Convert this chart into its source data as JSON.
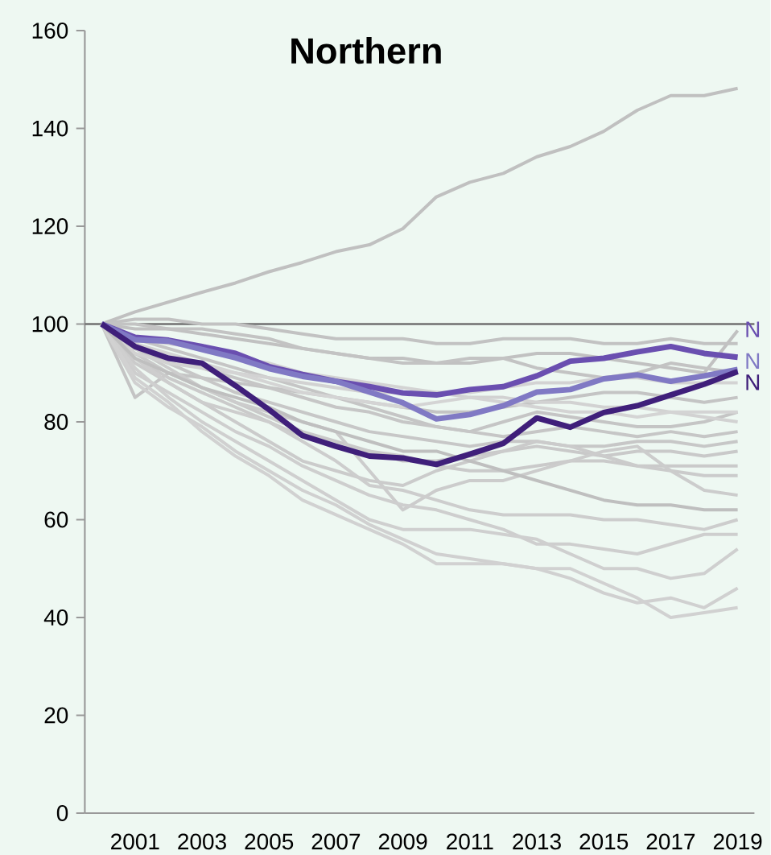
{
  "chart_data": {
    "type": "line",
    "title": "Northern",
    "categories": [
      null,
      "2001",
      null,
      "2003",
      null,
      "2005",
      null,
      "2007",
      null,
      "2009",
      null,
      "2011",
      null,
      "2013",
      null,
      "2015",
      null,
      "2017",
      null,
      "2019"
    ],
    "ylim": [
      0,
      160
    ],
    "yticks": [
      0,
      20,
      40,
      60,
      80,
      100,
      120,
      140,
      160
    ],
    "marker": "none",
    "line_style": "solid",
    "ref_lines": [
      {
        "axis": "y",
        "value": 100,
        "color": "#707070"
      }
    ],
    "series": [
      {
        "color": "#c0c0c0",
        "values": [
          100,
          102.5,
          104.5,
          106.5,
          108.4,
          110.7,
          112.6,
          114.8,
          116.2,
          119.5,
          126,
          129,
          130.8,
          134.2,
          136.3,
          139.4,
          143.7,
          146.7,
          146.7,
          148.2
        ]
      },
      {
        "color": "#c1c1c1",
        "values": [
          100,
          99,
          99,
          98,
          97,
          96,
          95,
          94,
          93,
          93,
          92,
          92,
          93,
          94,
          94,
          93,
          92,
          91,
          90,
          98.7
        ]
      },
      {
        "color": "#c2c2c2",
        "values": [
          100,
          101,
          101,
          100,
          100,
          99,
          98,
          97,
          97,
          97,
          96,
          96,
          97,
          97,
          97,
          96,
          96,
          97,
          96,
          96
        ]
      },
      {
        "color": "#c3c3c3",
        "values": [
          100,
          100,
          99,
          99,
          98,
          97,
          95,
          94,
          93,
          92,
          92,
          93,
          93,
          91,
          90,
          89,
          90,
          92,
          91,
          90
        ]
      },
      {
        "color": "#c4c4c4",
        "values": [
          100,
          85,
          90,
          89,
          88,
          87,
          86,
          85,
          84,
          83,
          82,
          82,
          83,
          84,
          85,
          86,
          86,
          85,
          84,
          85
        ]
      },
      {
        "color": "#c5c5c5",
        "values": [
          100,
          97,
          95,
          93,
          91,
          89,
          87,
          85,
          83,
          81,
          79,
          78,
          80,
          82,
          81,
          80,
          79,
          79,
          80,
          82
        ]
      },
      {
        "color": "#c6c6c6",
        "values": [
          100,
          96,
          93,
          91,
          89,
          87,
          85,
          83,
          82,
          80,
          79,
          78,
          77,
          78,
          79,
          78,
          77,
          78,
          77,
          78
        ]
      },
      {
        "color": "#c7c7c7",
        "values": [
          100,
          95,
          92,
          89,
          86,
          84,
          82,
          80,
          78,
          77,
          76,
          75,
          76,
          76,
          75,
          75,
          76,
          76,
          75,
          76
        ]
      },
      {
        "color": "#c9c9c9",
        "values": [
          100,
          94,
          90,
          87,
          84,
          81,
          78,
          76,
          74,
          72,
          72,
          73,
          74,
          75,
          74,
          73,
          74,
          74,
          73,
          74
        ]
      },
      {
        "color": "#cacaca",
        "values": [
          100,
          93,
          89,
          86,
          83,
          80,
          77,
          75,
          74,
          73,
          71,
          70,
          70,
          71,
          72,
          72,
          71,
          71,
          71,
          71
        ]
      },
      {
        "color": "#cbcbcb",
        "values": [
          100,
          92,
          88,
          84,
          80,
          76,
          72,
          70,
          68,
          67,
          70,
          72,
          74,
          76,
          75,
          73,
          71,
          70,
          69,
          69
        ]
      },
      {
        "color": "#cccccc",
        "values": [
          100,
          95,
          91,
          87,
          84,
          82,
          80,
          78,
          70,
          62,
          66,
          68,
          68,
          70,
          72,
          74,
          75,
          70,
          66,
          65
        ]
      },
      {
        "color": "#cdcdcd",
        "values": [
          100,
          93,
          88,
          84,
          82,
          80,
          76,
          72,
          67,
          66,
          64,
          62,
          61,
          61,
          61,
          60,
          60,
          59,
          58,
          60
        ]
      },
      {
        "color": "#cecece",
        "values": [
          100,
          90,
          86,
          82,
          78,
          75,
          71,
          68,
          65,
          63,
          62,
          60,
          58,
          55,
          55,
          54,
          53,
          55,
          57,
          57
        ]
      },
      {
        "color": "#cfcfcf",
        "values": [
          100,
          91,
          85,
          80,
          76,
          72,
          68,
          64,
          60,
          58,
          58,
          58,
          57,
          56,
          53,
          50,
          50,
          48,
          49,
          54
        ]
      },
      {
        "color": "#d0d0d0",
        "values": [
          100,
          88,
          83,
          79,
          74,
          70,
          66,
          63,
          59,
          56,
          53,
          52,
          51,
          50,
          48,
          45,
          43,
          44,
          42,
          46
        ]
      },
      {
        "color": "#d1d1d1",
        "values": [
          100,
          89,
          84,
          78,
          73,
          69,
          64,
          61,
          58,
          55,
          51,
          51,
          51,
          50,
          50,
          47,
          44,
          40,
          41,
          42
        ]
      },
      {
        "color": "#d2d2d2",
        "values": [
          100,
          94,
          92,
          91,
          90,
          89,
          88,
          87,
          86,
          86,
          86,
          85,
          85,
          84,
          84,
          83,
          83,
          82,
          81,
          80
        ]
      },
      {
        "color": "#d3d3d3",
        "values": [
          100,
          97,
          96,
          95,
          93,
          92,
          90,
          89,
          88,
          87,
          86,
          86,
          87,
          88,
          88,
          89,
          89,
          88,
          88,
          88
        ]
      },
      {
        "color": "#d4d4d4",
        "values": [
          100,
          96,
          94,
          92,
          90,
          88,
          86,
          85,
          84,
          83,
          84,
          85,
          84,
          83,
          82,
          82,
          81,
          82,
          82,
          82
        ]
      },
      {
        "color": "#bfbfbf",
        "values": [
          100,
          93,
          90,
          87,
          85,
          83,
          80,
          78,
          76,
          74,
          74,
          72,
          70,
          68,
          66,
          64,
          63,
          63,
          62,
          62
        ]
      },
      {
        "name": "N",
        "color": "#6a4fb0",
        "values": [
          100,
          97.3,
          96.7,
          95.4,
          94,
          91.3,
          89.7,
          88.3,
          87.2,
          85.9,
          85.5,
          86.6,
          87.2,
          89.4,
          92.4,
          93,
          94.3,
          95.4,
          94,
          93.2
        ]
      },
      {
        "name": "N",
        "color": "#8079c4",
        "values": [
          100,
          96.8,
          96.5,
          94.8,
          93.1,
          90.9,
          89.3,
          88.3,
          86.1,
          83.9,
          80.6,
          81.5,
          83.3,
          86.1,
          86.6,
          88.8,
          89.6,
          88.3,
          89.4,
          90.7
        ]
      },
      {
        "name": "N",
        "color": "#3f1f7a",
        "values": [
          100,
          95.4,
          93,
          92,
          87.4,
          82.5,
          77.2,
          75,
          73,
          72.6,
          71.3,
          73.4,
          75.6,
          80.8,
          78.9,
          81.9,
          83.3,
          85.5,
          87.7,
          90.3
        ]
      }
    ]
  }
}
